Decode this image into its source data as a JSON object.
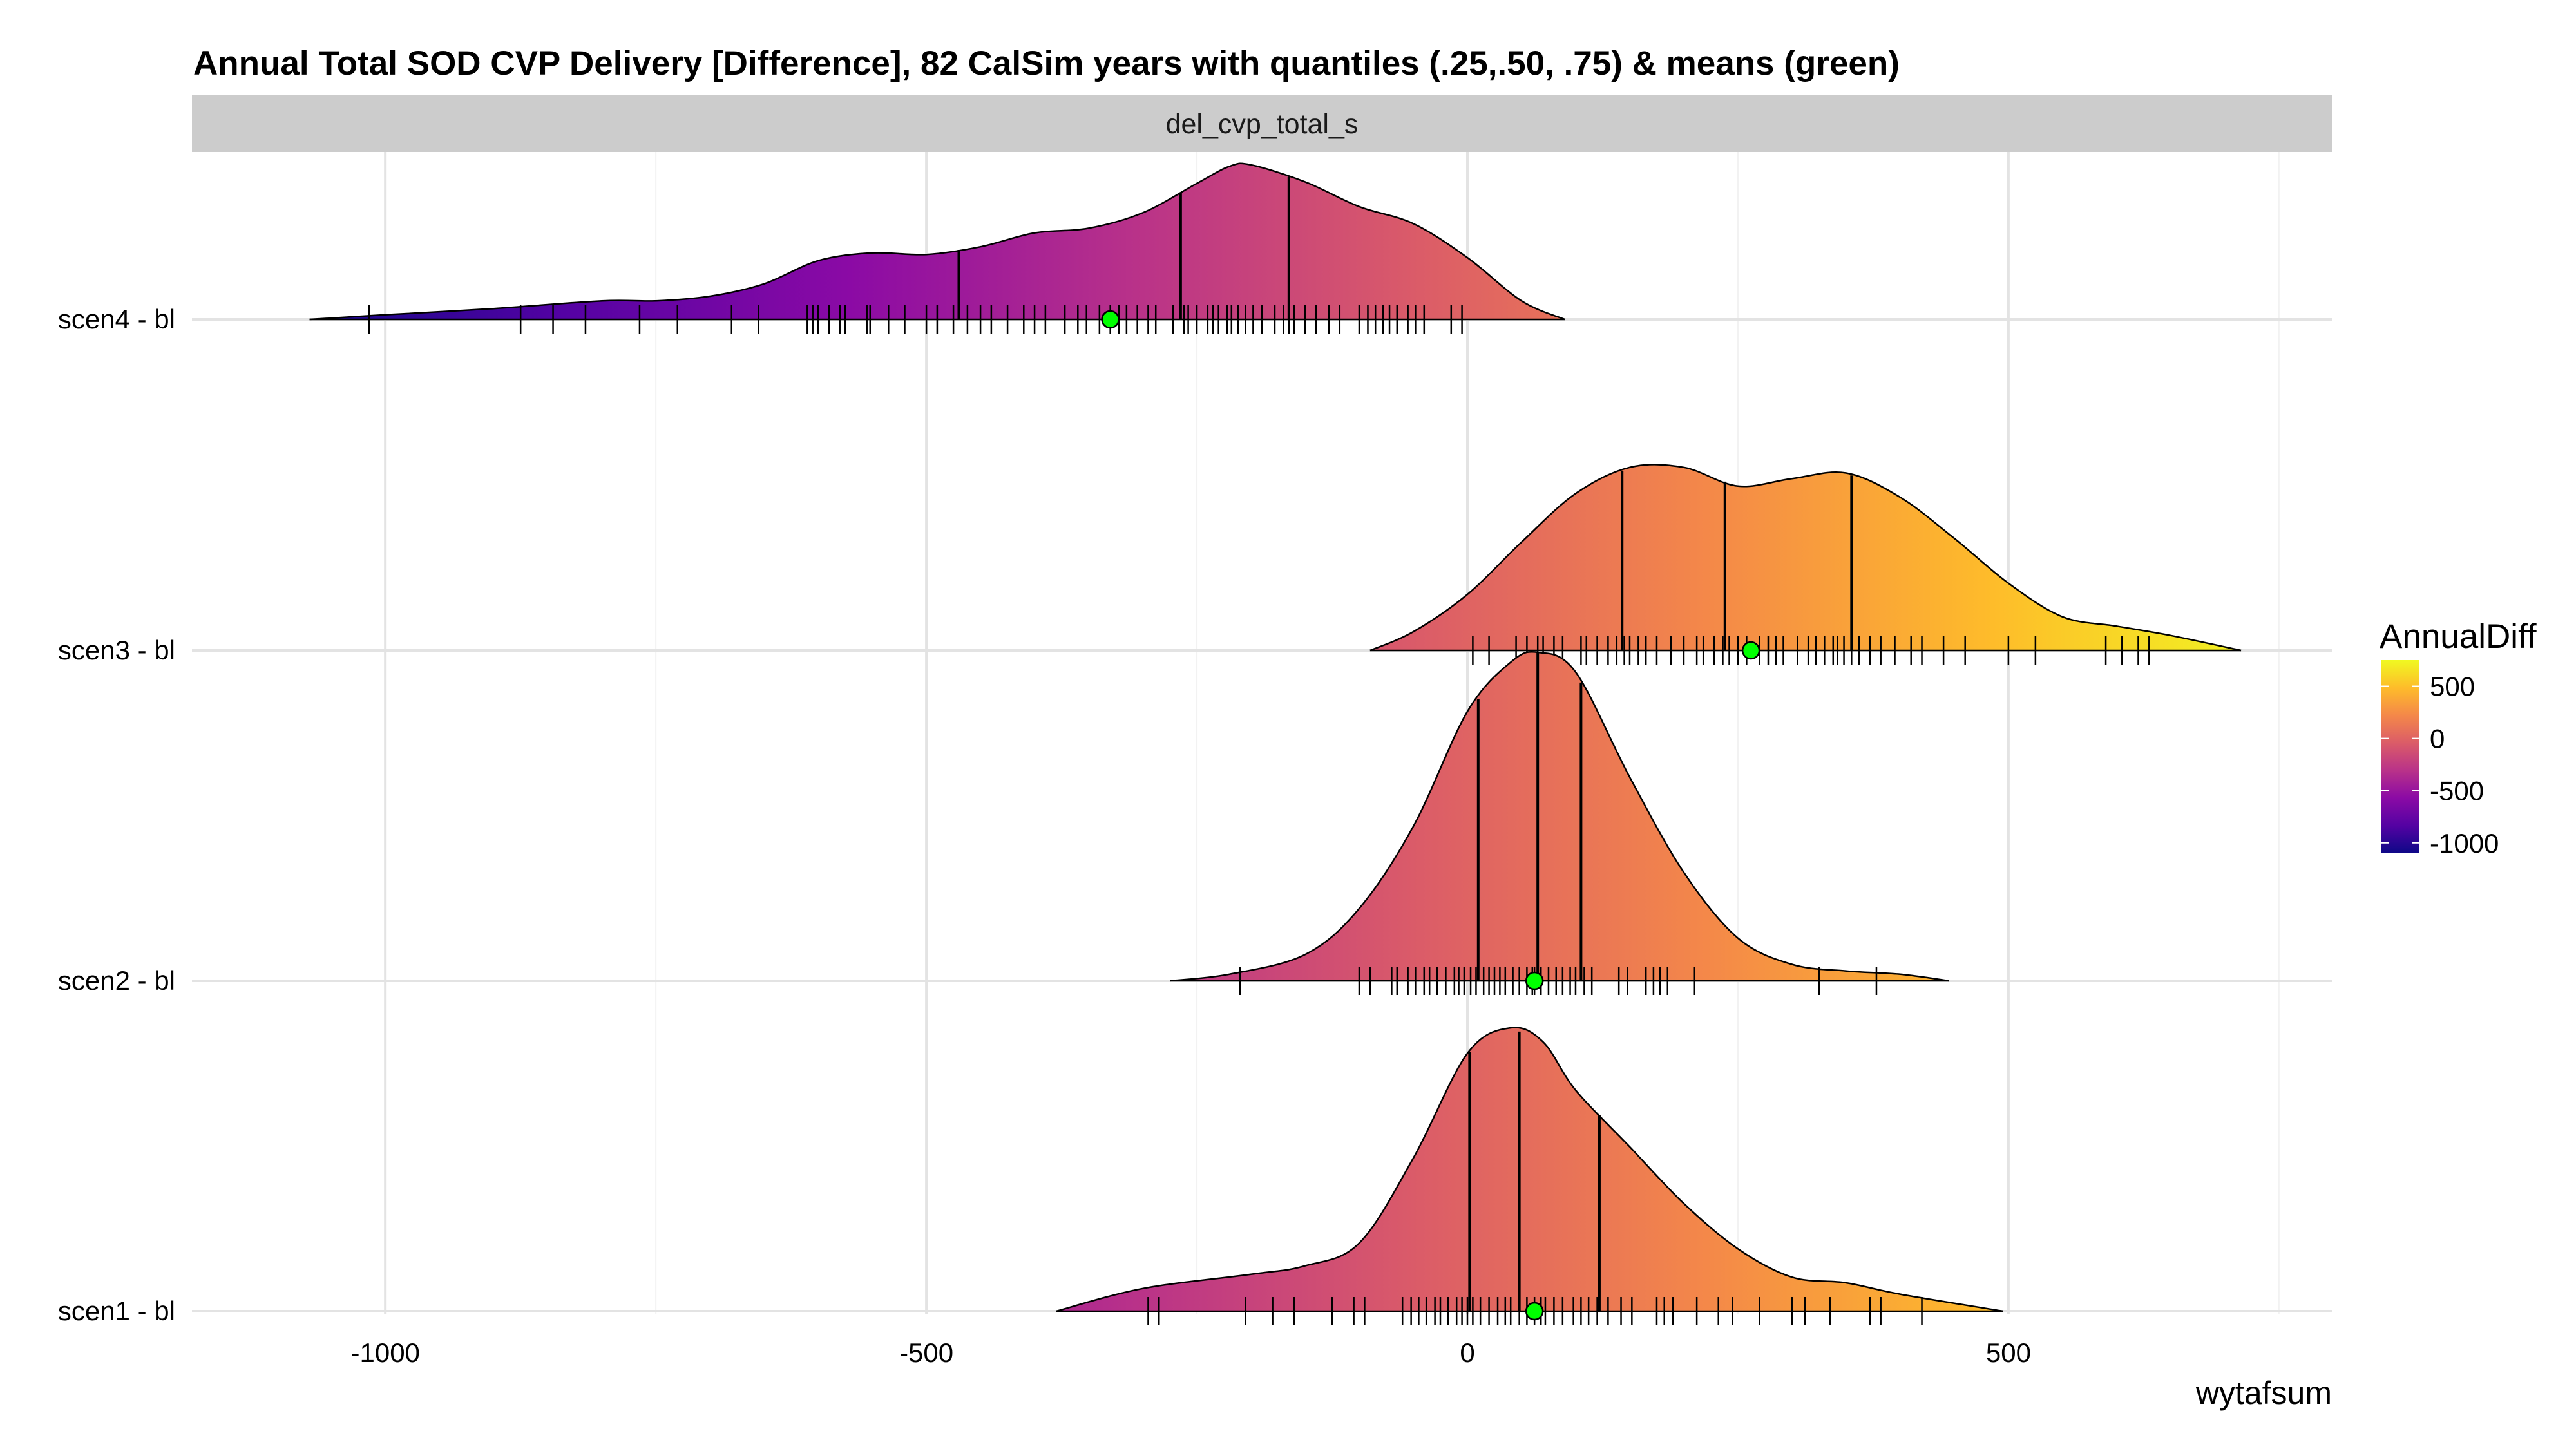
{
  "chart_data": {
    "type": "ridgeline",
    "title": "Annual Total SOD CVP Delivery [Difference], 82 CalSim years with quantiles (.25,.50, .75) & means (green)",
    "facet_label": "del_cvp_total_s",
    "xlabel": "wytafsum",
    "x_ticks": [
      -1000,
      -500,
      0,
      500
    ],
    "xlim": [
      -1200,
      800
    ],
    "grid": true,
    "legend": {
      "title": "AnnualDiff",
      "position": "right",
      "ticks": [
        500,
        0,
        -500,
        -1000
      ],
      "range": [
        -1100,
        750
      ],
      "colors": [
        "#0d0887",
        "#5402a3",
        "#8b0aa5",
        "#b93289",
        "#db5c68",
        "#f48849",
        "#febc2a",
        "#f0f921"
      ]
    },
    "mean_marker_color": "#00ff00",
    "series": [
      {
        "name": "scen4 - bl",
        "density": [
          [
            -1070,
            0
          ],
          [
            -1000,
            0.03
          ],
          [
            -900,
            0.07
          ],
          [
            -800,
            0.12
          ],
          [
            -750,
            0.12
          ],
          [
            -700,
            0.15
          ],
          [
            -650,
            0.23
          ],
          [
            -600,
            0.38
          ],
          [
            -550,
            0.43
          ],
          [
            -500,
            0.42
          ],
          [
            -450,
            0.47
          ],
          [
            -400,
            0.56
          ],
          [
            -350,
            0.59
          ],
          [
            -300,
            0.69
          ],
          [
            -250,
            0.88
          ],
          [
            -220,
            0.99
          ],
          [
            -200,
            1.0
          ],
          [
            -150,
            0.89
          ],
          [
            -100,
            0.73
          ],
          [
            -50,
            0.62
          ],
          [
            0,
            0.4
          ],
          [
            50,
            0.12
          ],
          [
            90,
            0
          ]
        ],
        "quantiles": [
          -470,
          -265,
          -165
        ],
        "mean": -330,
        "rug": [
          -1015,
          -875,
          -845,
          -815,
          -765,
          -730,
          -680,
          -655,
          -610,
          -605,
          -600,
          -590,
          -580,
          -575,
          -555,
          -552,
          -535,
          -520,
          -500,
          -490,
          -475,
          -462,
          -450,
          -440,
          -425,
          -410,
          -400,
          -390,
          -372,
          -360,
          -352,
          -340,
          -330,
          -322,
          -315,
          -305,
          -295,
          -288,
          -272,
          -262,
          -258,
          -250,
          -240,
          -235,
          -230,
          -222,
          -218,
          -212,
          -205,
          -198,
          -190,
          -178,
          -170,
          -165,
          -160,
          -150,
          -140,
          -128,
          -118,
          -100,
          -92,
          -85,
          -78,
          -72,
          -65,
          -55,
          -48,
          -40,
          -15,
          -5
        ]
      },
      {
        "name": "scen3 - bl",
        "density": [
          [
            -90,
            0
          ],
          [
            -50,
            0.1
          ],
          [
            0,
            0.3
          ],
          [
            50,
            0.58
          ],
          [
            100,
            0.84
          ],
          [
            150,
            0.98
          ],
          [
            200,
            0.98
          ],
          [
            250,
            0.88
          ],
          [
            300,
            0.92
          ],
          [
            350,
            0.95
          ],
          [
            400,
            0.82
          ],
          [
            450,
            0.6
          ],
          [
            500,
            0.36
          ],
          [
            550,
            0.18
          ],
          [
            600,
            0.13
          ],
          [
            650,
            0.08
          ],
          [
            715,
            0
          ]
        ],
        "quantiles": [
          143,
          238,
          355
        ],
        "mean": 262,
        "rug": [
          5,
          20,
          45,
          55,
          65,
          70,
          80,
          88,
          105,
          110,
          120,
          130,
          138,
          145,
          150,
          158,
          165,
          175,
          188,
          200,
          212,
          218,
          228,
          236,
          242,
          250,
          258,
          270,
          278,
          285,
          292,
          305,
          315,
          322,
          330,
          338,
          342,
          348,
          355,
          362,
          372,
          382,
          395,
          410,
          420,
          440,
          460,
          500,
          525,
          590,
          605,
          620,
          630
        ]
      },
      {
        "name": "scen2 - bl",
        "density": [
          [
            -275,
            0
          ],
          [
            -220,
            0.02
          ],
          [
            -150,
            0.08
          ],
          [
            -100,
            0.22
          ],
          [
            -50,
            0.47
          ],
          [
            0,
            0.82
          ],
          [
            40,
            0.97
          ],
          [
            65,
            1.0
          ],
          [
            100,
            0.94
          ],
          [
            150,
            0.62
          ],
          [
            200,
            0.33
          ],
          [
            250,
            0.13
          ],
          [
            300,
            0.05
          ],
          [
            350,
            0.03
          ],
          [
            400,
            0.02
          ],
          [
            445,
            0
          ]
        ],
        "quantiles": [
          10,
          65,
          105
        ],
        "mean": 62,
        "rug": [
          -210,
          -100,
          -90,
          -70,
          -65,
          -55,
          -48,
          -40,
          -35,
          -28,
          -20,
          -12,
          -8,
          -3,
          3,
          8,
          15,
          20,
          25,
          30,
          35,
          42,
          48,
          55,
          60,
          62,
          68,
          75,
          82,
          88,
          95,
          100,
          108,
          115,
          140,
          148,
          165,
          172,
          178,
          185,
          210,
          325,
          378
        ]
      },
      {
        "name": "scen1 - bl",
        "density": [
          [
            -380,
            0
          ],
          [
            -300,
            0.08
          ],
          [
            -200,
            0.13
          ],
          [
            -150,
            0.16
          ],
          [
            -100,
            0.24
          ],
          [
            -50,
            0.54
          ],
          [
            0,
            0.91
          ],
          [
            40,
            1.0
          ],
          [
            70,
            0.95
          ],
          [
            100,
            0.78
          ],
          [
            150,
            0.58
          ],
          [
            200,
            0.38
          ],
          [
            250,
            0.22
          ],
          [
            300,
            0.12
          ],
          [
            350,
            0.1
          ],
          [
            400,
            0.06
          ],
          [
            495,
            0
          ]
        ],
        "quantiles": [
          2,
          48,
          122
        ],
        "mean": 62,
        "rug": [
          -295,
          -285,
          -205,
          -180,
          -160,
          -125,
          -105,
          -95,
          -60,
          -52,
          -45,
          -38,
          -30,
          -25,
          -18,
          -10,
          -5,
          0,
          5,
          12,
          20,
          28,
          35,
          40,
          48,
          55,
          62,
          68,
          72,
          80,
          88,
          98,
          105,
          112,
          120,
          130,
          142,
          152,
          175,
          182,
          190,
          212,
          232,
          245,
          270,
          300,
          312,
          335,
          372,
          382,
          420
        ]
      }
    ]
  }
}
